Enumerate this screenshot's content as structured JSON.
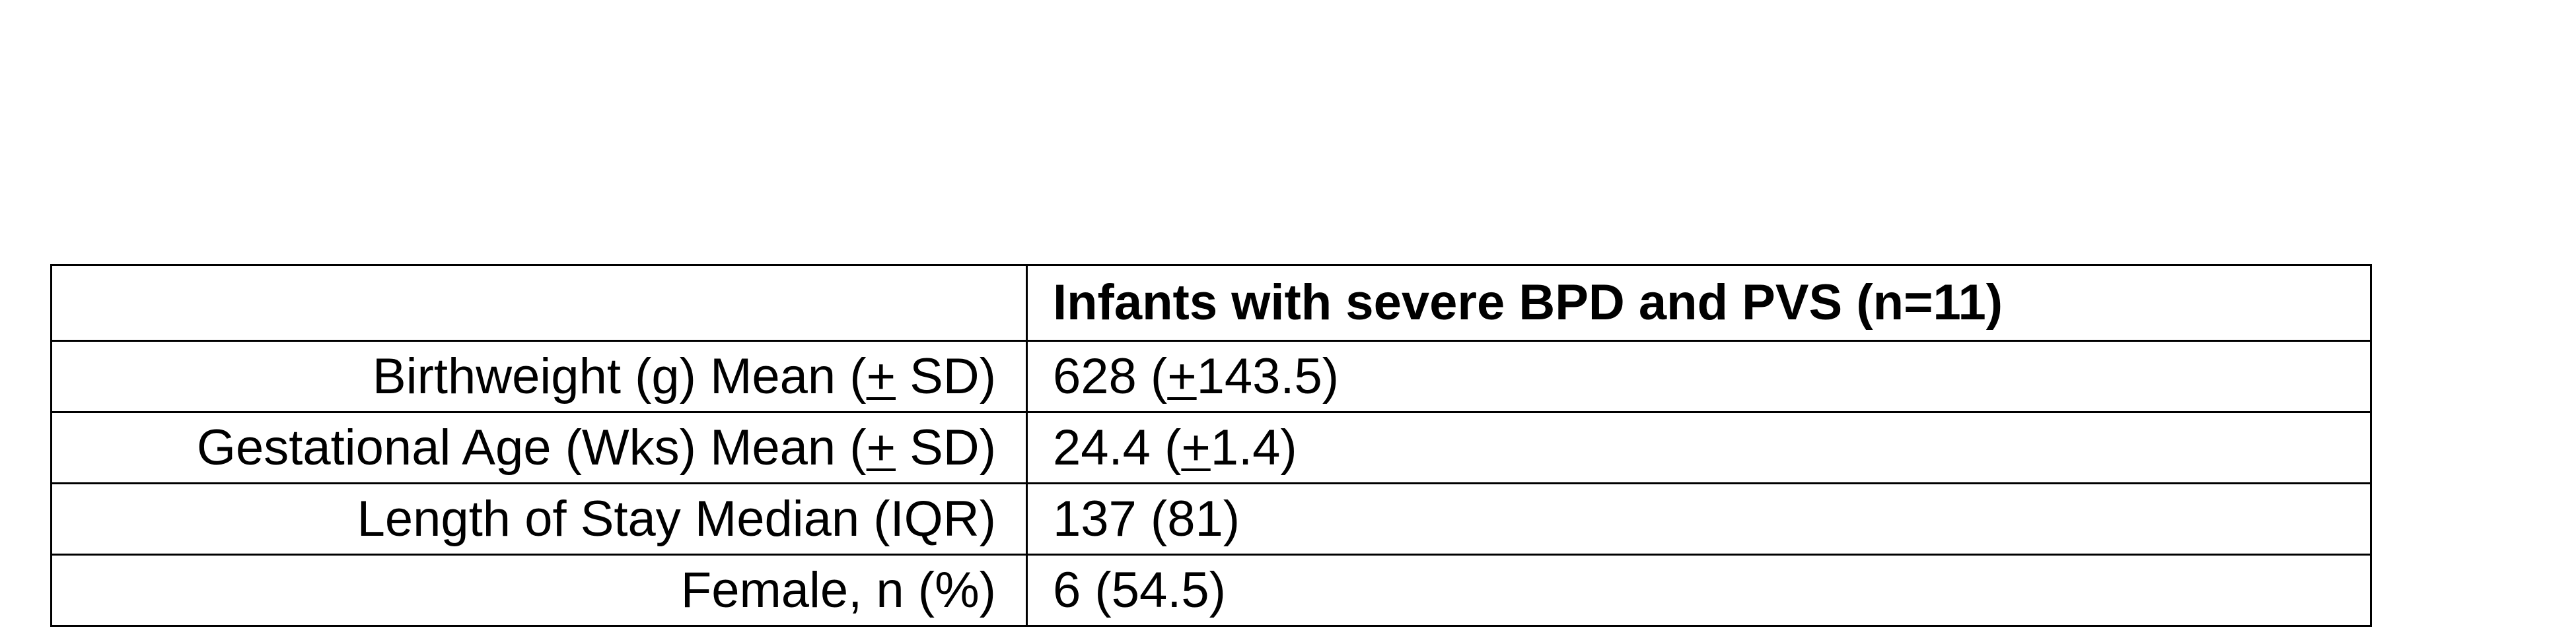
{
  "table": {
    "header": {
      "label": "",
      "value": "Infants with severe BPD and PVS (n=11)"
    },
    "rows": [
      {
        "label_pre": "Birthweight (g) Mean (",
        "label_pm": "+",
        "label_post": " SD)",
        "value_pre": "628 (",
        "value_pm": "+",
        "value_post": "143.5)"
      },
      {
        "label_pre": "Gestational Age (Wks) Mean (",
        "label_pm": "+",
        "label_post": " SD)",
        "value_pre": "24.4 (",
        "value_pm": "+",
        "value_post": "1.4)"
      },
      {
        "label": "Length of Stay Median (IQR)",
        "value": "137 (81)"
      },
      {
        "label": "Female, n (%)",
        "value": "6 (54.5)"
      }
    ]
  }
}
